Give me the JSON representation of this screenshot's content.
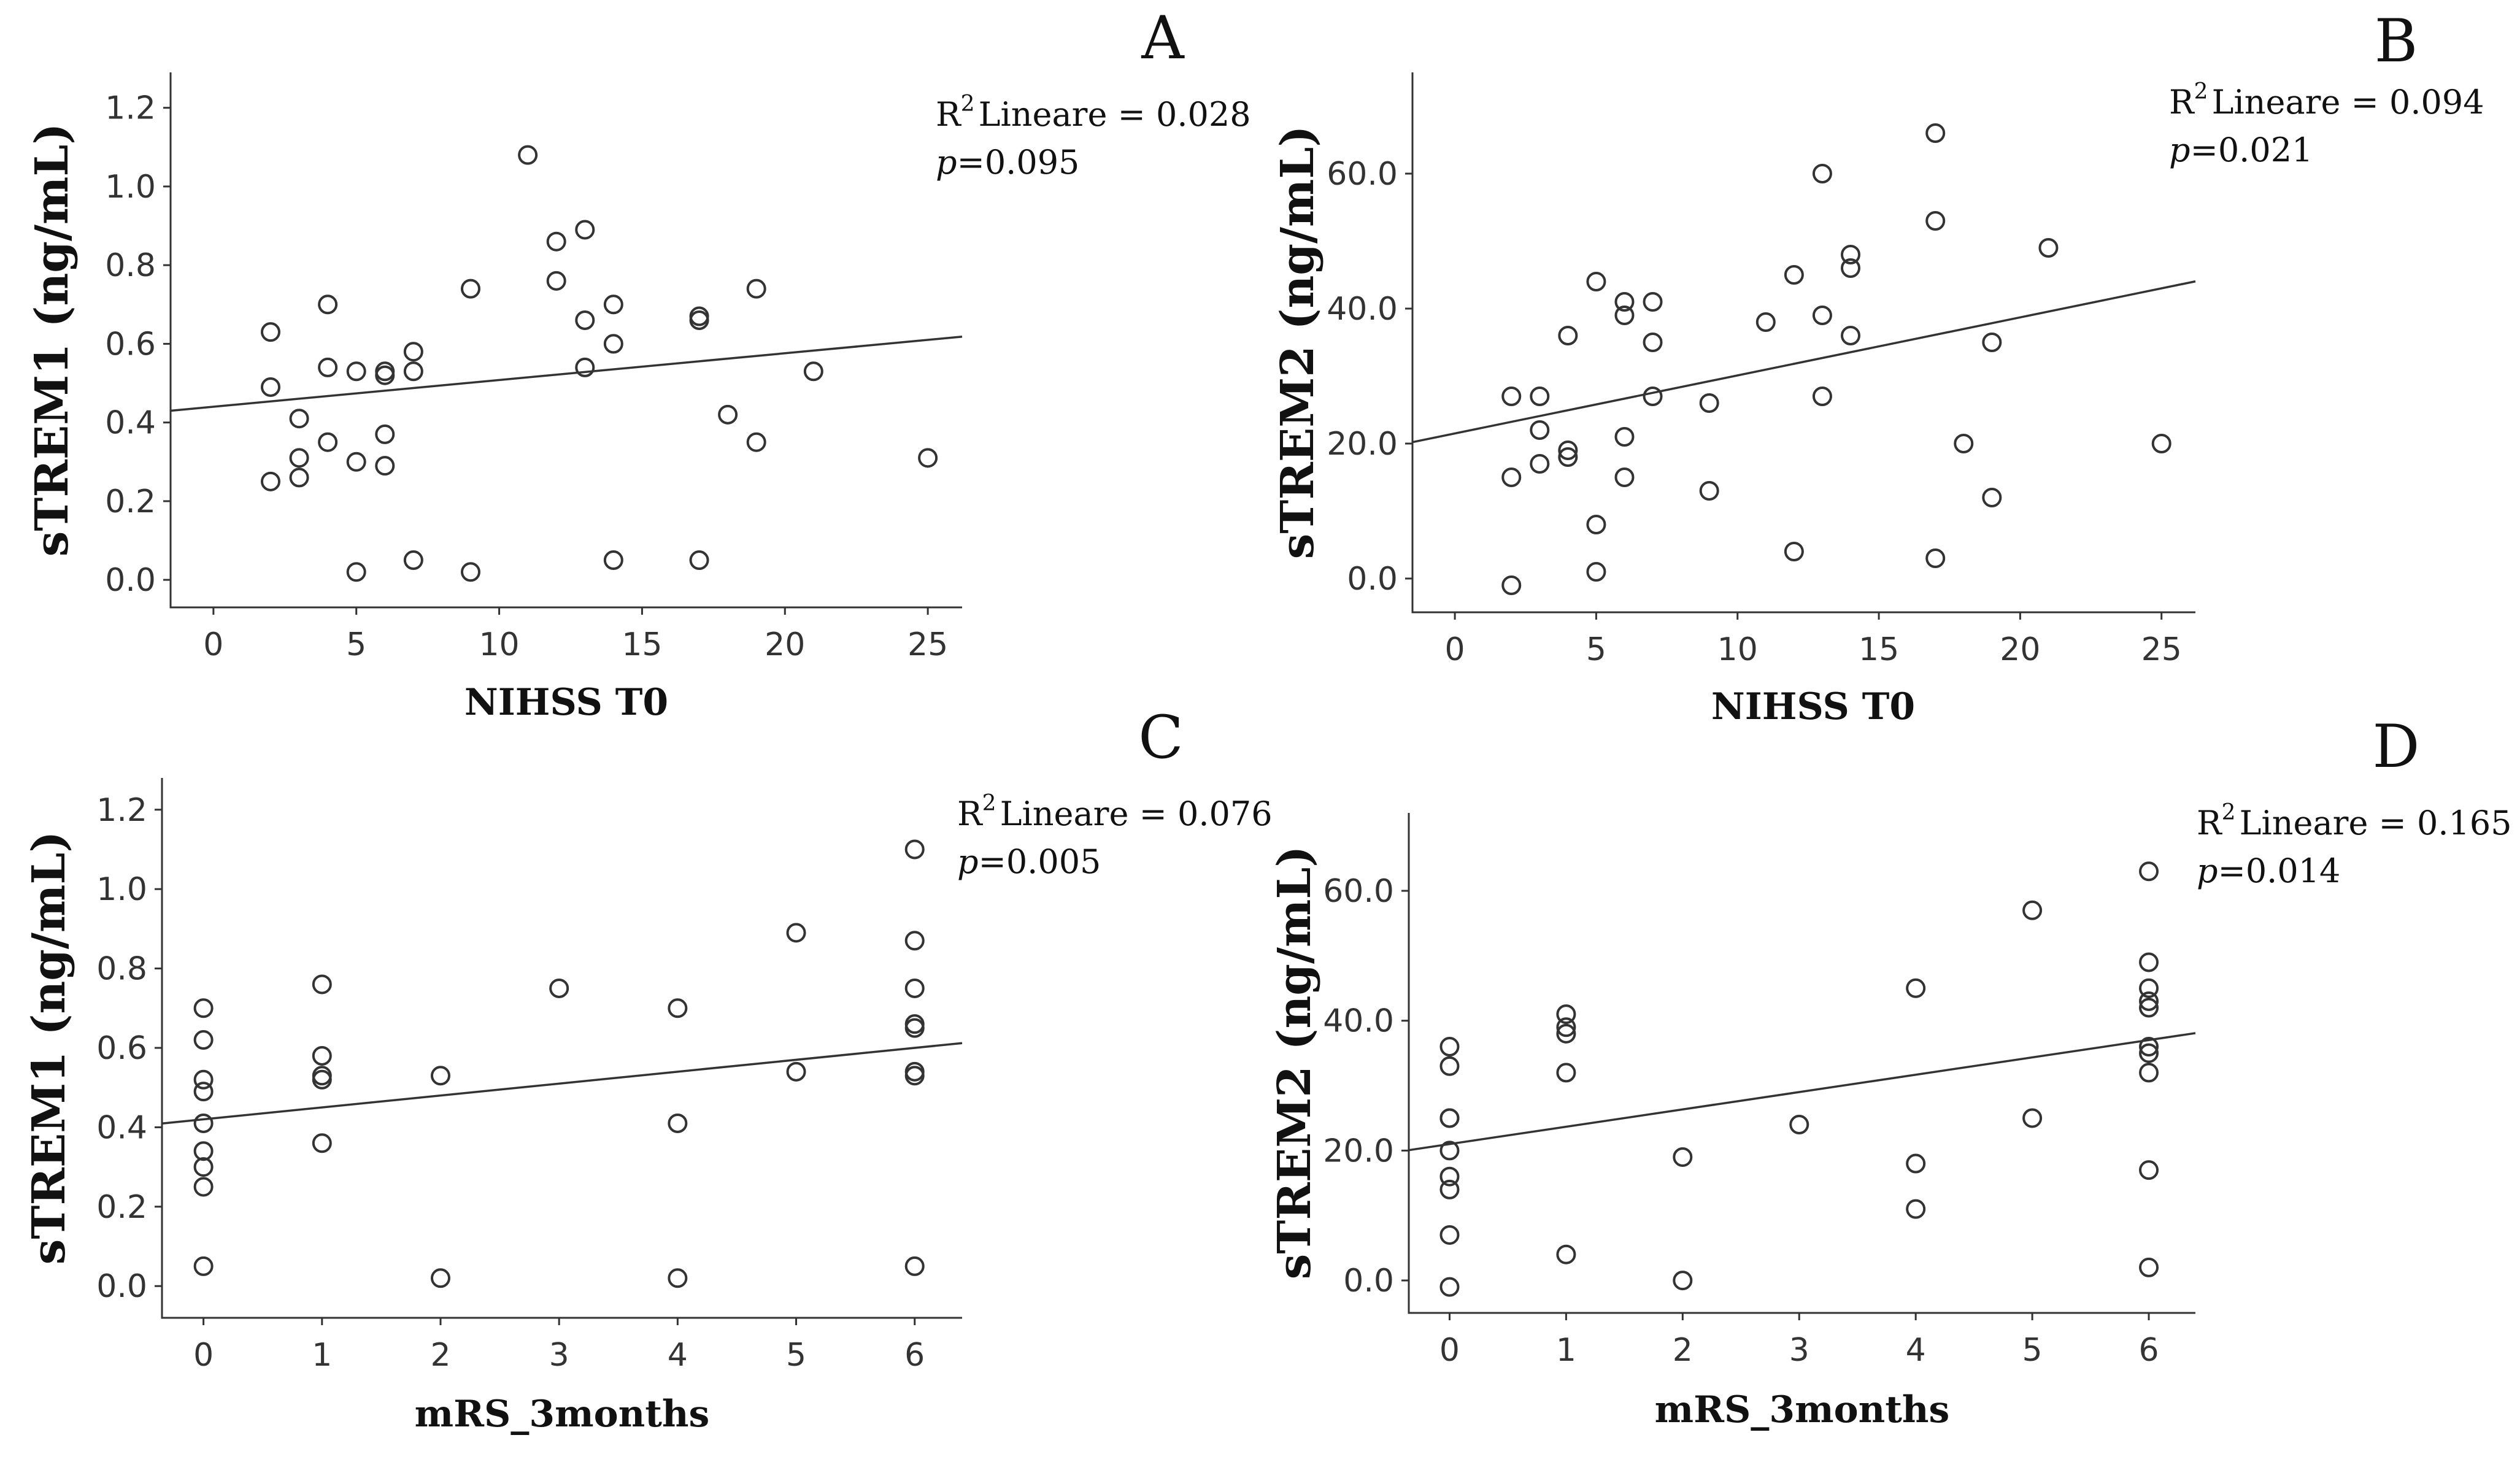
{
  "chart_data": [
    {
      "type": "scatter",
      "panel": "A",
      "xlabel": "NIHSS T0",
      "ylabel": "sTREM1 (ng/mL)",
      "xlim": [
        -1.5,
        26.2
      ],
      "ylim": [
        -0.07,
        1.29
      ],
      "xticks": [
        "0",
        "5",
        "10",
        "15",
        "20",
        "25"
      ],
      "yticks": [
        "0.0",
        "0.2",
        "0.4",
        "0.6",
        "0.8",
        "1.0",
        "1.2"
      ],
      "xtick_values": [
        0,
        5,
        10,
        15,
        20,
        25
      ],
      "ytick_values": [
        0,
        0.2,
        0.4,
        0.6,
        0.8,
        1.0,
        1.2
      ],
      "fit": {
        "intercept": 0.44,
        "slope": 0.0068
      },
      "annotation": {
        "r2_label": "Lineare = 0.028",
        "p_label": "=0.095"
      },
      "points": [
        [
          2,
          0.63
        ],
        [
          2,
          0.49
        ],
        [
          2,
          0.25
        ],
        [
          3,
          0.41
        ],
        [
          3,
          0.31
        ],
        [
          3,
          0.26
        ],
        [
          4,
          0.7
        ],
        [
          4,
          0.54
        ],
        [
          4,
          0.35
        ],
        [
          5,
          0.53
        ],
        [
          5,
          0.3
        ],
        [
          5,
          0.02
        ],
        [
          6,
          0.53
        ],
        [
          6,
          0.52
        ],
        [
          6,
          0.37
        ],
        [
          6,
          0.29
        ],
        [
          7,
          0.58
        ],
        [
          7,
          0.53
        ],
        [
          7,
          0.05
        ],
        [
          9,
          0.74
        ],
        [
          9,
          0.02
        ],
        [
          11,
          1.08
        ],
        [
          12,
          0.86
        ],
        [
          12,
          0.76
        ],
        [
          13,
          0.89
        ],
        [
          13,
          0.66
        ],
        [
          13,
          0.54
        ],
        [
          14,
          0.7
        ],
        [
          14,
          0.6
        ],
        [
          14,
          0.05
        ],
        [
          17,
          0.67
        ],
        [
          17,
          0.66
        ],
        [
          17,
          0.05
        ],
        [
          18,
          0.42
        ],
        [
          19,
          0.74
        ],
        [
          19,
          0.35
        ],
        [
          21,
          0.53
        ],
        [
          25,
          0.31
        ]
      ]
    },
    {
      "type": "scatter",
      "panel": "B",
      "xlabel": "NIHSS T0",
      "ylabel": "sTREM2 (ng/mL)",
      "xlim": [
        -1.5,
        26.2
      ],
      "ylim": [
        -5,
        75
      ],
      "xticks": [
        "0",
        "5",
        "10",
        "15",
        "20",
        "25"
      ],
      "yticks": [
        "0.0",
        "20.0",
        "40.0",
        "60.0"
      ],
      "xtick_values": [
        0,
        5,
        10,
        15,
        20,
        25
      ],
      "ytick_values": [
        0,
        20,
        40,
        60
      ],
      "fit": {
        "intercept": 21.5,
        "slope": 0.86
      },
      "annotation": {
        "r2_label": "Lineare = 0.094",
        "p_label": "=0.021"
      },
      "points": [
        [
          2,
          27
        ],
        [
          2,
          15
        ],
        [
          2,
          -1
        ],
        [
          3,
          27
        ],
        [
          3,
          22
        ],
        [
          3,
          17
        ],
        [
          4,
          36
        ],
        [
          4,
          19
        ],
        [
          4,
          18
        ],
        [
          5,
          44
        ],
        [
          5,
          8
        ],
        [
          5,
          1
        ],
        [
          6,
          41
        ],
        [
          6,
          39
        ],
        [
          6,
          21
        ],
        [
          6,
          15
        ],
        [
          7,
          41
        ],
        [
          7,
          35
        ],
        [
          7,
          27
        ],
        [
          9,
          26
        ],
        [
          9,
          13
        ],
        [
          11,
          38
        ],
        [
          12,
          45
        ],
        [
          12,
          4
        ],
        [
          13,
          60
        ],
        [
          13,
          39
        ],
        [
          13,
          27
        ],
        [
          14,
          48
        ],
        [
          14,
          46
        ],
        [
          14,
          36
        ],
        [
          17,
          66
        ],
        [
          17,
          53
        ],
        [
          17,
          3
        ],
        [
          18,
          20
        ],
        [
          19,
          35
        ],
        [
          19,
          12
        ],
        [
          21,
          49
        ],
        [
          25,
          20
        ]
      ]
    },
    {
      "type": "scatter",
      "panel": "C",
      "xlabel": "mRS_3months",
      "ylabel": "sTREM1 (ng/mL)",
      "xlim": [
        -0.35,
        6.4
      ],
      "ylim": [
        -0.08,
        1.28
      ],
      "xticks": [
        "0",
        "1",
        "2",
        "3",
        "4",
        "5",
        "6"
      ],
      "yticks": [
        "0.0",
        "0.2",
        "0.4",
        "0.6",
        "0.8",
        "1.0",
        "1.2"
      ],
      "xtick_values": [
        0,
        1,
        2,
        3,
        4,
        5,
        6
      ],
      "ytick_values": [
        0,
        0.2,
        0.4,
        0.6,
        0.8,
        1.0,
        1.2
      ],
      "fit": {
        "intercept": 0.42,
        "slope": 0.03
      },
      "annotation": {
        "r2_label": "Lineare = 0.076",
        "p_label": "=0.005"
      },
      "points": [
        [
          0,
          0.7
        ],
        [
          0,
          0.62
        ],
        [
          0,
          0.52
        ],
        [
          0,
          0.49
        ],
        [
          0,
          0.41
        ],
        [
          0,
          0.34
        ],
        [
          0,
          0.3
        ],
        [
          0,
          0.25
        ],
        [
          0,
          0.05
        ],
        [
          1,
          0.76
        ],
        [
          1,
          0.58
        ],
        [
          1,
          0.53
        ],
        [
          1,
          0.52
        ],
        [
          1,
          0.36
        ],
        [
          2,
          0.53
        ],
        [
          2,
          0.02
        ],
        [
          3,
          0.75
        ],
        [
          4,
          0.7
        ],
        [
          4,
          0.41
        ],
        [
          4,
          0.02
        ],
        [
          5,
          0.89
        ],
        [
          5,
          0.54
        ],
        [
          6,
          1.1
        ],
        [
          6,
          0.87
        ],
        [
          6,
          0.75
        ],
        [
          6,
          0.66
        ],
        [
          6,
          0.65
        ],
        [
          6,
          0.54
        ],
        [
          6,
          0.53
        ],
        [
          6,
          0.05
        ]
      ]
    },
    {
      "type": "scatter",
      "panel": "D",
      "xlabel": "mRS_3months",
      "ylabel": "sTREM2 (ng/mL)",
      "xlim": [
        -0.35,
        6.4
      ],
      "ylim": [
        -5,
        72
      ],
      "xticks": [
        "0",
        "1",
        "2",
        "3",
        "4",
        "5",
        "6"
      ],
      "yticks": [
        "0.0",
        "20.0",
        "40.0",
        "60.0"
      ],
      "xtick_values": [
        0,
        1,
        2,
        3,
        4,
        5,
        6
      ],
      "ytick_values": [
        0,
        20,
        40,
        60
      ],
      "fit": {
        "intercept": 21,
        "slope": 2.67
      },
      "annotation": {
        "r2_label": "Lineare = 0.165",
        "p_label": "=0.014"
      },
      "points": [
        [
          0,
          36
        ],
        [
          0,
          33
        ],
        [
          0,
          25
        ],
        [
          0,
          25
        ],
        [
          0,
          20
        ],
        [
          0,
          16
        ],
        [
          0,
          14
        ],
        [
          0,
          7
        ],
        [
          0,
          -1
        ],
        [
          1,
          41
        ],
        [
          1,
          39
        ],
        [
          1,
          38
        ],
        [
          1,
          32
        ],
        [
          1,
          4
        ],
        [
          2,
          19
        ],
        [
          2,
          0
        ],
        [
          3,
          24
        ],
        [
          4,
          45
        ],
        [
          4,
          18
        ],
        [
          4,
          11
        ],
        [
          5,
          57
        ],
        [
          5,
          25
        ],
        [
          6,
          63
        ],
        [
          6,
          49
        ],
        [
          6,
          45
        ],
        [
          6,
          43
        ],
        [
          6,
          42
        ],
        [
          6,
          36
        ],
        [
          6,
          35
        ],
        [
          6,
          32
        ],
        [
          6,
          17
        ],
        [
          6,
          2
        ]
      ]
    }
  ]
}
